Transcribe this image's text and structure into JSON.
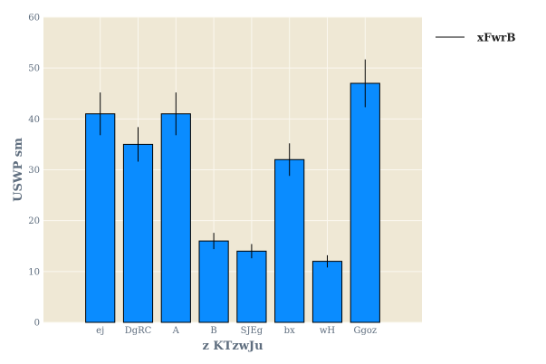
{
  "chart_data": {
    "type": "bar",
    "title": "",
    "xlabel": "z KTzwJu",
    "ylabel": "USWP sm",
    "ylim": [
      0,
      60
    ],
    "yticks": [
      0,
      10,
      20,
      30,
      40,
      50,
      60
    ],
    "grid": true,
    "legend_position": "top-right",
    "categories": [
      "ej",
      "DgRC",
      "A",
      "B",
      "SJEg",
      "bx",
      "wH",
      "Ggoz"
    ],
    "series": [
      {
        "name": "xFwrB",
        "values": [
          41,
          35,
          41,
          16,
          14,
          32,
          12,
          47
        ],
        "error": [
          4.2,
          3.4,
          4.2,
          1.6,
          1.4,
          3.2,
          1.2,
          4.7
        ]
      }
    ],
    "colors": {
      "bar": "#0a8cff",
      "bar_edge": "#000000",
      "plot_bg": "#efe8d5",
      "grid": "#fbf8f0",
      "error_bar": "#000000"
    }
  }
}
